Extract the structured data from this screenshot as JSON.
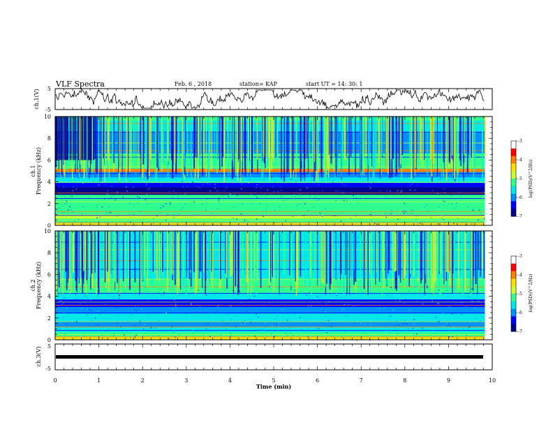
{
  "header": {
    "title": "VLF Spectra",
    "date": "Feb. 6 , 2018",
    "station": "station= KAP",
    "start": "start UT = 14: 30: 1"
  },
  "chart_data": [
    {
      "type": "line",
      "id": "ch1-waveform",
      "ylabel": "ch.1(V)",
      "ylim": [
        -5,
        5
      ],
      "yticks": [
        "5",
        "-5"
      ],
      "xlim": [
        0,
        10
      ],
      "points": 9.83
    },
    {
      "type": "heatmap",
      "id": "ch1-spectrogram",
      "ylabel": [
        "ch.1",
        "Frequency (kHz)"
      ],
      "ylim": [
        0,
        10
      ],
      "yticks": [
        "0",
        "2",
        "4",
        "6",
        "8",
        "10"
      ],
      "xlim": [
        0,
        10
      ],
      "colorbar": {
        "label": "log(PSD)(V^2/Hz)",
        "ticks": [
          "-3",
          "-4",
          "-5",
          "-6",
          "-7"
        ],
        "range": [
          -7,
          -3
        ]
      }
    },
    {
      "type": "heatmap",
      "id": "ch2-spectrogram",
      "ylabel": [
        "ch.2",
        "Frequency (kHz)"
      ],
      "ylim": [
        0,
        10
      ],
      "yticks": [
        "0",
        "2",
        "4",
        "6",
        "8",
        "10"
      ],
      "xlim": [
        0,
        10
      ],
      "colorbar": {
        "label": "log(PSD)(V^2/Hz)",
        "ticks": [
          "-3",
          "-4",
          "-5",
          "-6",
          "-7"
        ],
        "range": [
          -7,
          -3
        ]
      }
    },
    {
      "type": "line",
      "id": "ch3-waveform",
      "ylabel": "ch.3(V)",
      "ylim": [
        -5,
        5
      ],
      "yticks": [
        "5",
        "-5"
      ],
      "xlim": [
        0,
        10
      ],
      "level": 0
    }
  ],
  "xaxis": {
    "label": "Time (min)",
    "ticks": [
      "0",
      "1",
      "2",
      "3",
      "4",
      "5",
      "6",
      "7",
      "8",
      "9",
      "10"
    ]
  },
  "colors": {
    "scale": [
      "#00008f",
      "#0000ff",
      "#0090ff",
      "#00e8e8",
      "#30ff90",
      "#c8ff30",
      "#ffe000",
      "#ff8000",
      "#ff0000",
      "#ffffff"
    ]
  }
}
